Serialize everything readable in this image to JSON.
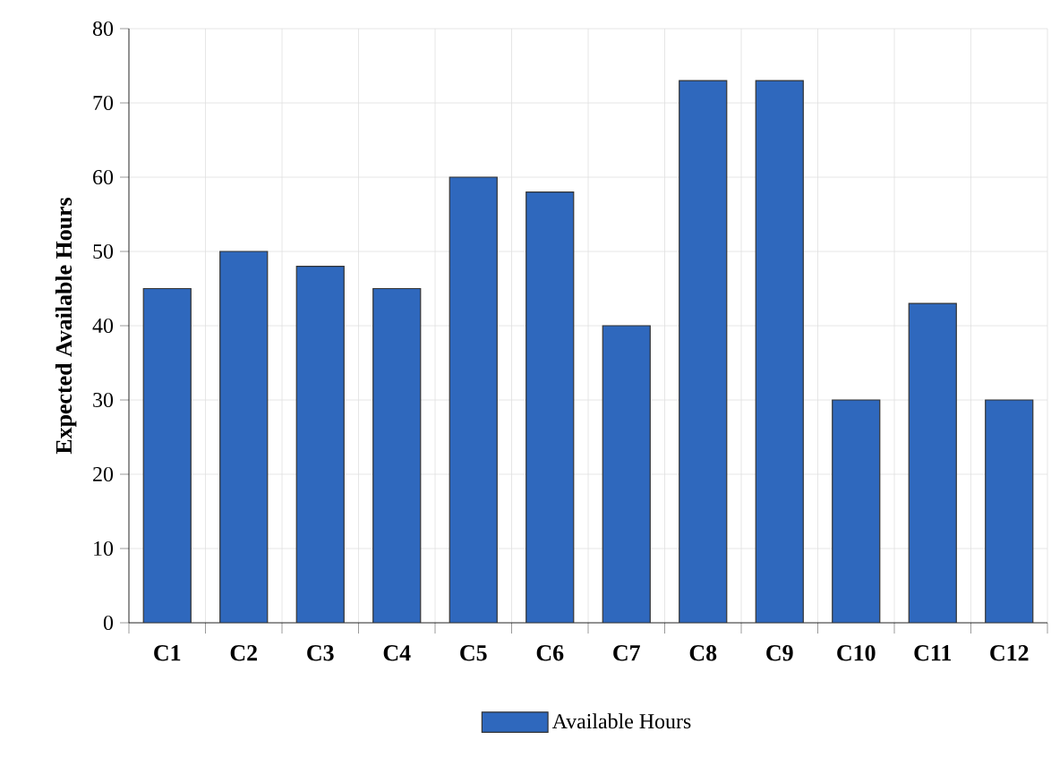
{
  "chart_data": {
    "type": "bar",
    "ylabel": "Expected Available Hours",
    "categories": [
      "C1",
      "C2",
      "C3",
      "C4",
      "C5",
      "C6",
      "C7",
      "C8",
      "C9",
      "C10",
      "C11",
      "C12"
    ],
    "series": [
      {
        "name": "Available Hours",
        "color": "#2f68bd",
        "values": [
          45,
          50,
          48,
          45,
          60,
          58,
          40,
          73,
          73,
          30,
          43,
          30
        ]
      }
    ],
    "ylim": [
      0,
      80
    ],
    "yticks": [
      0,
      10,
      20,
      30,
      40,
      50,
      60,
      70,
      80
    ],
    "grid": true,
    "legend": "bottom"
  }
}
